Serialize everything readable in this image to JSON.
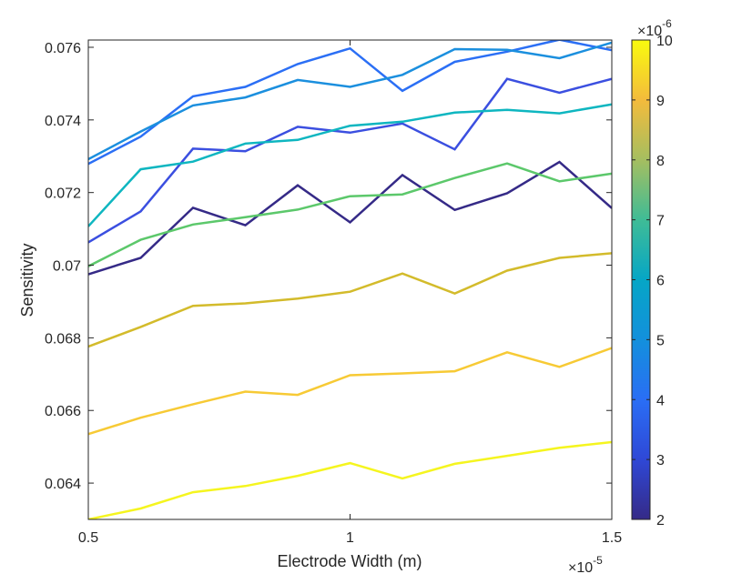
{
  "chart_data": {
    "type": "line",
    "xlabel": "Electrode Width (m)",
    "ylabel": "Sensitivity",
    "x_exponent_label": "×10",
    "x_exponent_power": "-5",
    "xlim": [
      0.5,
      1.5
    ],
    "ylim": [
      0.063,
      0.0762
    ],
    "x_ticks": [
      0.5,
      1,
      1.5
    ],
    "x_tick_labels": [
      "0.5",
      "1",
      "1.5"
    ],
    "y_ticks": [
      0.064,
      0.066,
      0.068,
      0.07,
      0.072,
      0.074,
      0.076
    ],
    "y_tick_labels": [
      "0.064",
      "0.066",
      "0.068",
      "0.07",
      "0.072",
      "0.074",
      "0.076"
    ],
    "x": [
      0.5,
      0.6,
      0.7,
      0.8,
      0.9,
      1.0,
      1.1,
      1.2,
      1.3,
      1.4,
      1.5
    ],
    "grid": false,
    "legend": "none",
    "colorbar": {
      "min": 2,
      "max": 10,
      "ticks": [
        2,
        3,
        4,
        5,
        6,
        7,
        8,
        9,
        10
      ],
      "tick_labels": [
        "2",
        "3",
        "4",
        "5",
        "6",
        "7",
        "8",
        "9",
        "10"
      ],
      "exponent_label": "×10",
      "exponent_power": "-6",
      "colormap": "parula"
    },
    "series": [
      {
        "c": 2,
        "color": "#352a87",
        "values": [
          0.06975,
          0.0702,
          0.07158,
          0.0711,
          0.0722,
          0.07118,
          0.07248,
          0.07152,
          0.07198,
          0.07284,
          0.07157
        ]
      },
      {
        "c": 3,
        "color": "#3b4fe0",
        "values": [
          0.07063,
          0.07148,
          0.07321,
          0.07314,
          0.07381,
          0.07365,
          0.0739,
          0.07319,
          0.07513,
          0.07475,
          0.07513
        ]
      },
      {
        "c": 3.7,
        "color": "#2b6ff5",
        "values": [
          0.07279,
          0.07354,
          0.07465,
          0.07491,
          0.07554,
          0.07597,
          0.0748,
          0.0756,
          0.07588,
          0.07621,
          0.07592
        ]
      },
      {
        "c": 4.4,
        "color": "#1b8fde",
        "values": [
          0.07292,
          0.07368,
          0.0744,
          0.07462,
          0.0751,
          0.07491,
          0.07524,
          0.07595,
          0.07593,
          0.0757,
          0.07613
        ]
      },
      {
        "c": 5.8,
        "color": "#0eb6c0",
        "values": [
          0.07107,
          0.07264,
          0.07285,
          0.07335,
          0.07345,
          0.07384,
          0.07395,
          0.0742,
          0.07428,
          0.07418,
          0.07443
        ]
      },
      {
        "c": 7,
        "color": "#5cc86b",
        "values": [
          0.06997,
          0.0707,
          0.07112,
          0.07132,
          0.07153,
          0.0719,
          0.07195,
          0.0724,
          0.0728,
          0.07231,
          0.07252
        ]
      },
      {
        "c": 8.2,
        "color": "#d3bb2b",
        "values": [
          0.06776,
          0.0683,
          0.06888,
          0.06895,
          0.06908,
          0.06927,
          0.06977,
          0.06922,
          0.06985,
          0.0702,
          0.07033
        ]
      },
      {
        "c": 9,
        "color": "#f7ca35",
        "values": [
          0.06535,
          0.0658,
          0.06617,
          0.06652,
          0.06643,
          0.06697,
          0.06702,
          0.06708,
          0.0676,
          0.0672,
          0.06772
        ]
      },
      {
        "c": 9.8,
        "color": "#f5f51f",
        "values": [
          0.063,
          0.0633,
          0.06375,
          0.06392,
          0.0642,
          0.06455,
          0.06413,
          0.06453,
          0.06475,
          0.06497,
          0.06513
        ]
      }
    ]
  }
}
